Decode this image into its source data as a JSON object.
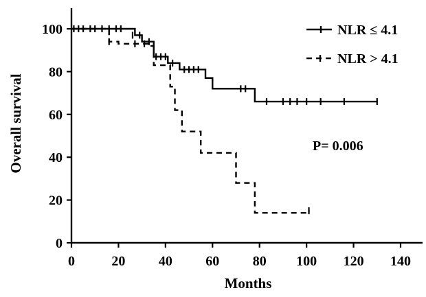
{
  "chart_data": {
    "type": "line",
    "subtype": "kaplan-meier",
    "xlabel": "Months",
    "ylabel": "Overall survival",
    "xlim": [
      0,
      150
    ],
    "ylim": [
      0,
      110
    ],
    "xticks": [
      0,
      20,
      40,
      60,
      80,
      100,
      120,
      140
    ],
    "yticks": [
      0,
      20,
      40,
      60,
      80,
      100
    ],
    "grid": false,
    "legend_position": "top-right",
    "annotation": "P= 0.006",
    "series": [
      {
        "name": "NLR ≤ 4.1",
        "line_style": "solid",
        "steps": [
          [
            0,
            100
          ],
          [
            27,
            97
          ],
          [
            30,
            94
          ],
          [
            35,
            87
          ],
          [
            41,
            84
          ],
          [
            46,
            81
          ],
          [
            57,
            77
          ],
          [
            60,
            72
          ],
          [
            78,
            66
          ],
          [
            130,
            66
          ]
        ],
        "censored": [
          [
            1,
            100
          ],
          [
            3,
            100
          ],
          [
            5,
            100
          ],
          [
            8,
            100
          ],
          [
            10,
            100
          ],
          [
            13,
            100
          ],
          [
            16,
            100
          ],
          [
            19,
            100
          ],
          [
            21,
            100
          ],
          [
            26,
            97
          ],
          [
            29,
            97
          ],
          [
            33,
            94
          ],
          [
            36,
            87
          ],
          [
            38,
            87
          ],
          [
            40,
            87
          ],
          [
            43,
            84
          ],
          [
            48,
            81
          ],
          [
            50,
            81
          ],
          [
            52,
            81
          ],
          [
            54,
            81
          ],
          [
            72,
            72
          ],
          [
            74,
            72
          ],
          [
            83,
            66
          ],
          [
            90,
            66
          ],
          [
            93,
            66
          ],
          [
            96,
            66
          ],
          [
            100,
            66
          ],
          [
            106,
            66
          ],
          [
            116,
            66
          ],
          [
            130,
            66
          ]
        ]
      },
      {
        "name": "NLR > 4.1",
        "line_style": "dashed",
        "steps": [
          [
            0,
            100
          ],
          [
            16,
            94
          ],
          [
            20,
            93
          ],
          [
            33,
            92
          ],
          [
            35,
            83
          ],
          [
            42,
            73
          ],
          [
            44,
            62
          ],
          [
            47,
            52
          ],
          [
            55,
            42
          ],
          [
            70,
            28
          ],
          [
            78,
            14
          ],
          [
            101,
            15
          ]
        ],
        "censored": [
          [
            16,
            94
          ],
          [
            27,
            93
          ],
          [
            31,
            93
          ],
          [
            101,
            15
          ]
        ]
      }
    ]
  }
}
